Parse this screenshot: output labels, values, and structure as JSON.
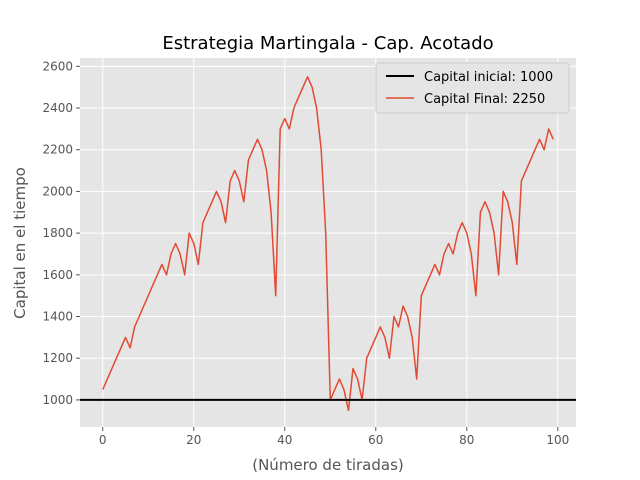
{
  "chart_data": {
    "type": "line",
    "title": "Estrategia Martingala - Cap. Acotado",
    "xlabel": "(Número de tiradas)",
    "ylabel": "Capital en el tiempo",
    "xlim": [
      -5,
      104
    ],
    "ylim": [
      870,
      2640
    ],
    "xticks": [
      0,
      20,
      40,
      60,
      80,
      100
    ],
    "yticks": [
      1000,
      1200,
      1400,
      1600,
      1800,
      2000,
      2200,
      2400,
      2600
    ],
    "grid": true,
    "legend_position": "top-right",
    "hline": {
      "name": "Capital inicial: 1000",
      "y": 1000,
      "color": "#000000"
    },
    "series": [
      {
        "name": "Capital Final: 2250",
        "color": "#E24A33",
        "x": [
          0,
          1,
          2,
          3,
          4,
          5,
          6,
          7,
          8,
          9,
          10,
          11,
          12,
          13,
          14,
          15,
          16,
          17,
          18,
          19,
          20,
          21,
          22,
          23,
          24,
          25,
          26,
          27,
          28,
          29,
          30,
          31,
          32,
          33,
          34,
          35,
          36,
          37,
          38,
          39,
          40,
          41,
          42,
          43,
          44,
          45,
          46,
          47,
          48,
          49,
          50,
          51,
          52,
          53,
          54,
          55,
          56,
          57,
          58,
          59,
          60,
          61,
          62,
          63,
          64,
          65,
          66,
          67,
          68,
          69,
          70,
          71,
          72,
          73,
          74,
          75,
          76,
          77,
          78,
          79,
          80,
          81,
          82,
          83,
          84,
          85,
          86,
          87,
          88,
          89,
          90,
          91,
          92,
          93,
          94,
          95,
          96,
          97,
          98,
          99
        ],
        "values": [
          1050,
          1100,
          1150,
          1200,
          1250,
          1300,
          1250,
          1350,
          1400,
          1450,
          1500,
          1550,
          1600,
          1650,
          1600,
          1700,
          1750,
          1700,
          1600,
          1800,
          1750,
          1650,
          1850,
          1900,
          1950,
          2000,
          1950,
          1850,
          2050,
          2100,
          2050,
          1950,
          2150,
          2200,
          2250,
          2200,
          2100,
          1900,
          1500,
          2300,
          2350,
          2300,
          2400,
          2450,
          2500,
          2550,
          2500,
          2400,
          2200,
          1800,
          1000,
          1050,
          1100,
          1050,
          950,
          1150,
          1100,
          1000,
          1200,
          1250,
          1300,
          1350,
          1300,
          1200,
          1400,
          1350,
          1450,
          1400,
          1300,
          1100,
          1500,
          1550,
          1600,
          1650,
          1600,
          1700,
          1750,
          1700,
          1800,
          1850,
          1800,
          1700,
          1500,
          1900,
          1950,
          1900,
          1800,
          1600,
          2000,
          1950,
          1850,
          1650,
          2050,
          2100,
          2150,
          2200,
          2250,
          2200,
          2300,
          2250
        ]
      }
    ]
  }
}
